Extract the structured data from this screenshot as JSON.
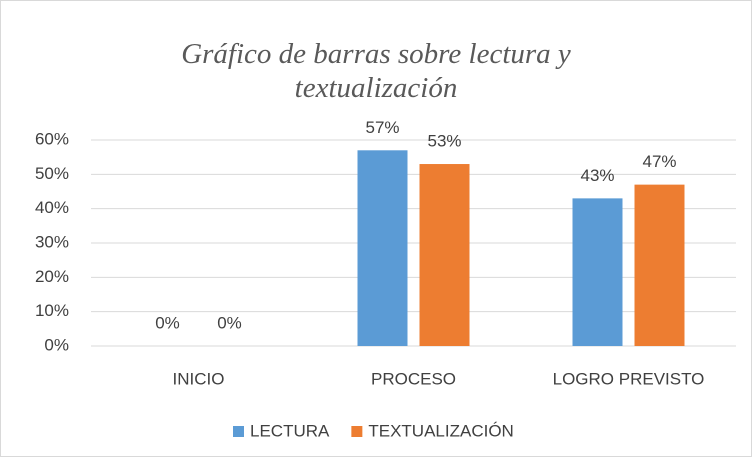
{
  "chart_data": {
    "type": "bar",
    "title": "Gráfico de barras sobre lectura y textualización",
    "categories": [
      "INICIO",
      "PROCESO",
      "LOGRO PREVISTO"
    ],
    "series": [
      {
        "name": "LECTURA",
        "color": "#5b9bd5",
        "values": [
          0,
          57,
          43
        ],
        "value_labels": [
          "0%",
          "57%",
          "43%"
        ]
      },
      {
        "name": "TEXTUALIZACIÓN",
        "color": "#ed7d31",
        "values": [
          0,
          53,
          47
        ],
        "value_labels": [
          "0%",
          "53%",
          "47%"
        ]
      }
    ],
    "ylim": [
      0,
      60
    ],
    "yticks": [
      {
        "value": 0,
        "label": "0%"
      },
      {
        "value": 10,
        "label": "10%"
      },
      {
        "value": 20,
        "label": "20%"
      },
      {
        "value": 30,
        "label": "30%"
      },
      {
        "value": 40,
        "label": "40%"
      },
      {
        "value": 50,
        "label": "50%"
      },
      {
        "value": 60,
        "label": "60%"
      }
    ],
    "grid": true,
    "legend": "bottom"
  }
}
